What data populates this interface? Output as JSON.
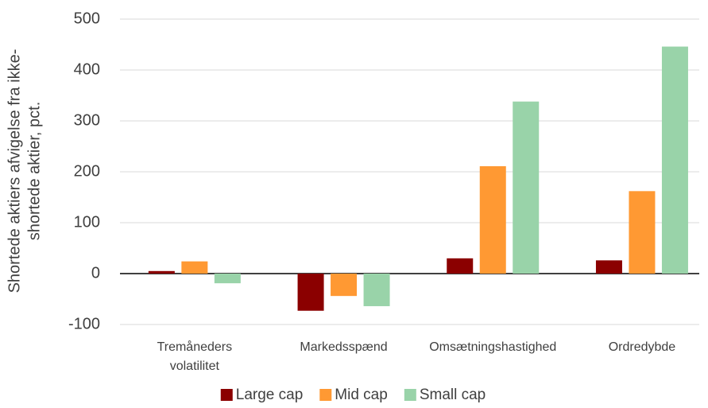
{
  "chart_data": {
    "type": "bar",
    "y_label": "Shortede aktiers afvigelse fra ikke-\nshortede aktier, pct.",
    "categories": [
      "Tremåneders\nvolatilitet",
      "Markedsspænd",
      "Omsætningshastighed",
      "Ordredybde"
    ],
    "series": [
      {
        "name": "Large cap",
        "color": "#8b0000",
        "values": [
          5,
          -73,
          30,
          26
        ]
      },
      {
        "name": "Mid cap",
        "color": "#ff9933",
        "values": [
          24,
          -44,
          211,
          162
        ]
      },
      {
        "name": "Small cap",
        "color": "#99d3a9",
        "values": [
          -19,
          -64,
          338,
          446
        ]
      }
    ],
    "ylim": [
      -100,
      500
    ],
    "yticks": [
      -100,
      0,
      100,
      200,
      300,
      400,
      500
    ],
    "grid": true,
    "legend": "bottom"
  }
}
